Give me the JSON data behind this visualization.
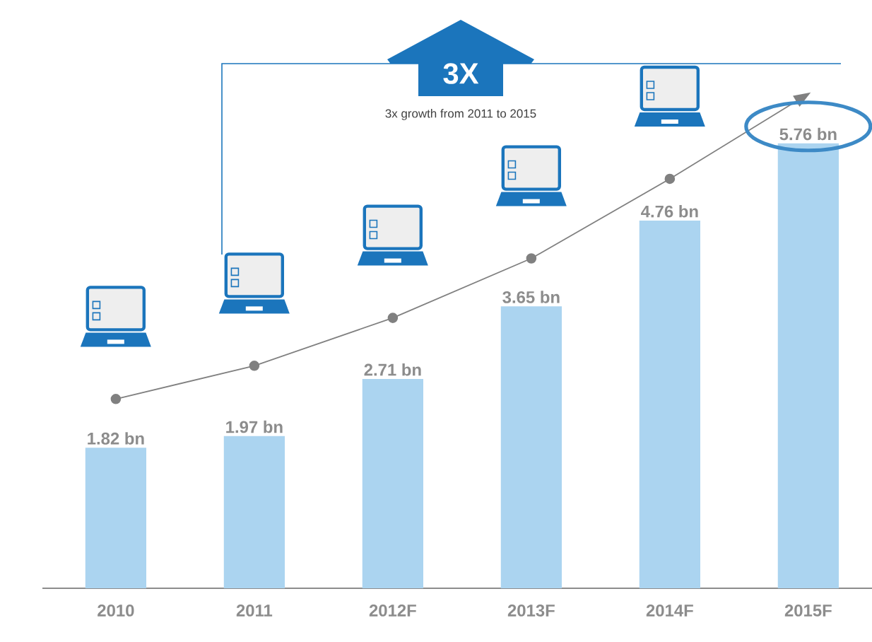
{
  "chart_data": {
    "type": "bar",
    "categories": [
      "2010",
      "2011",
      "2012F",
      "2013F",
      "2014F",
      "2015F"
    ],
    "series": [
      {
        "color": "#abd4f0",
        "values": [
          1.82,
          1.97,
          2.71,
          3.65,
          4.76,
          5.76
        ],
        "value_labels": [
          "1.82 bn",
          "1.97 bn",
          "2.71 bn",
          "3.65 bn",
          "4.76 bn",
          "5.76 bn"
        ]
      },
      {
        "type": "line",
        "color": "#808080",
        "marker": "circle",
        "line_style": "solid",
        "values": [
          2.45,
          2.88,
          3.5,
          4.27,
          5.3,
          6.4
        ]
      }
    ],
    "legend": false,
    "annotations": [
      "3X",
      "3x growth from 2011 to 2015"
    ]
  }
}
